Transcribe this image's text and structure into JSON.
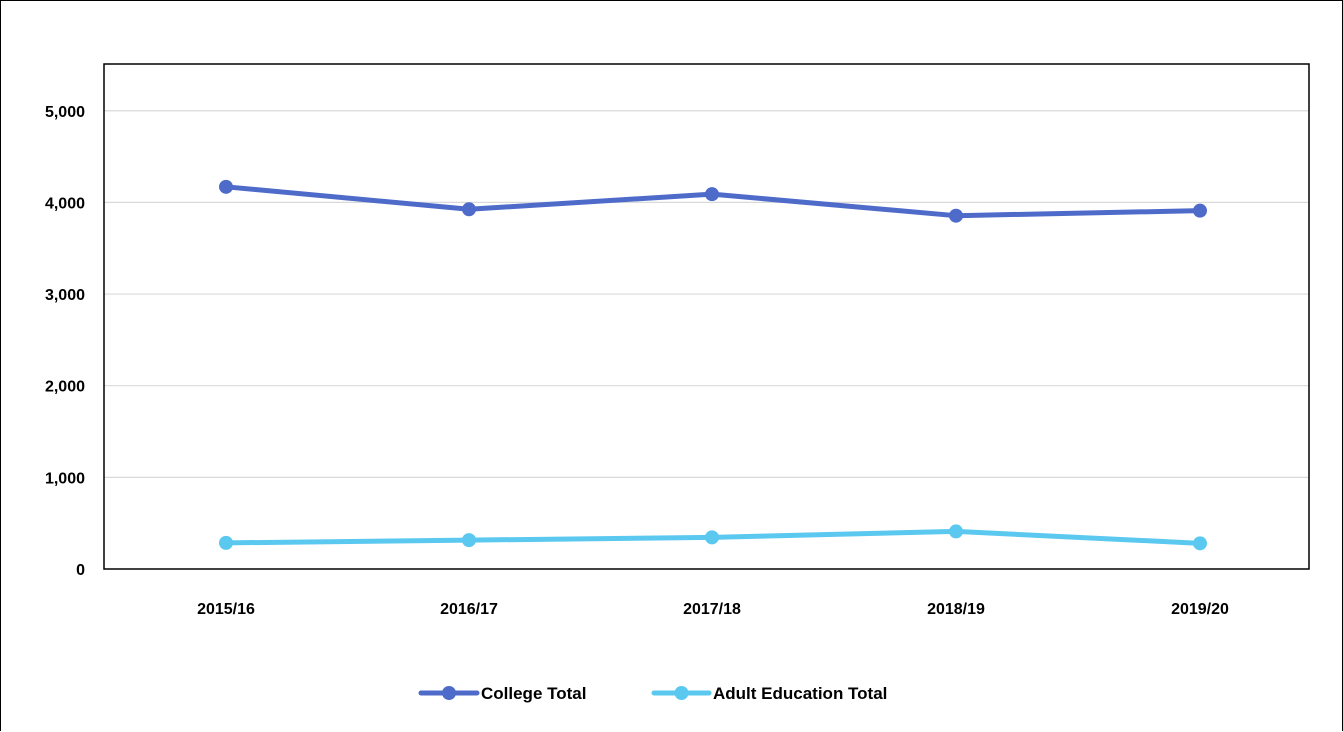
{
  "chart_data": {
    "type": "line",
    "categories": [
      "2015/16",
      "2016/17",
      "2017/18",
      "2018/19",
      "2019/20"
    ],
    "series": [
      {
        "name": "College Total",
        "color": "#4F6BC9",
        "values": [
          4170,
          3925,
          4090,
          3855,
          3910
        ]
      },
      {
        "name": "Adult Education Total",
        "color": "#5BC8F0",
        "values": [
          285,
          315,
          345,
          410,
          280
        ]
      }
    ],
    "y_ticks": [
      {
        "value": 0,
        "label": "0"
      },
      {
        "value": 1000,
        "label": "1,000"
      },
      {
        "value": 2000,
        "label": "2,000"
      },
      {
        "value": 3000,
        "label": "3,000"
      },
      {
        "value": 4000,
        "label": "4,000"
      },
      {
        "value": 5000,
        "label": "5,000"
      }
    ],
    "ylim": [
      0,
      5500
    ],
    "grid": true,
    "legend_position": "bottom",
    "title": "",
    "xlabel": "",
    "ylabel": ""
  }
}
